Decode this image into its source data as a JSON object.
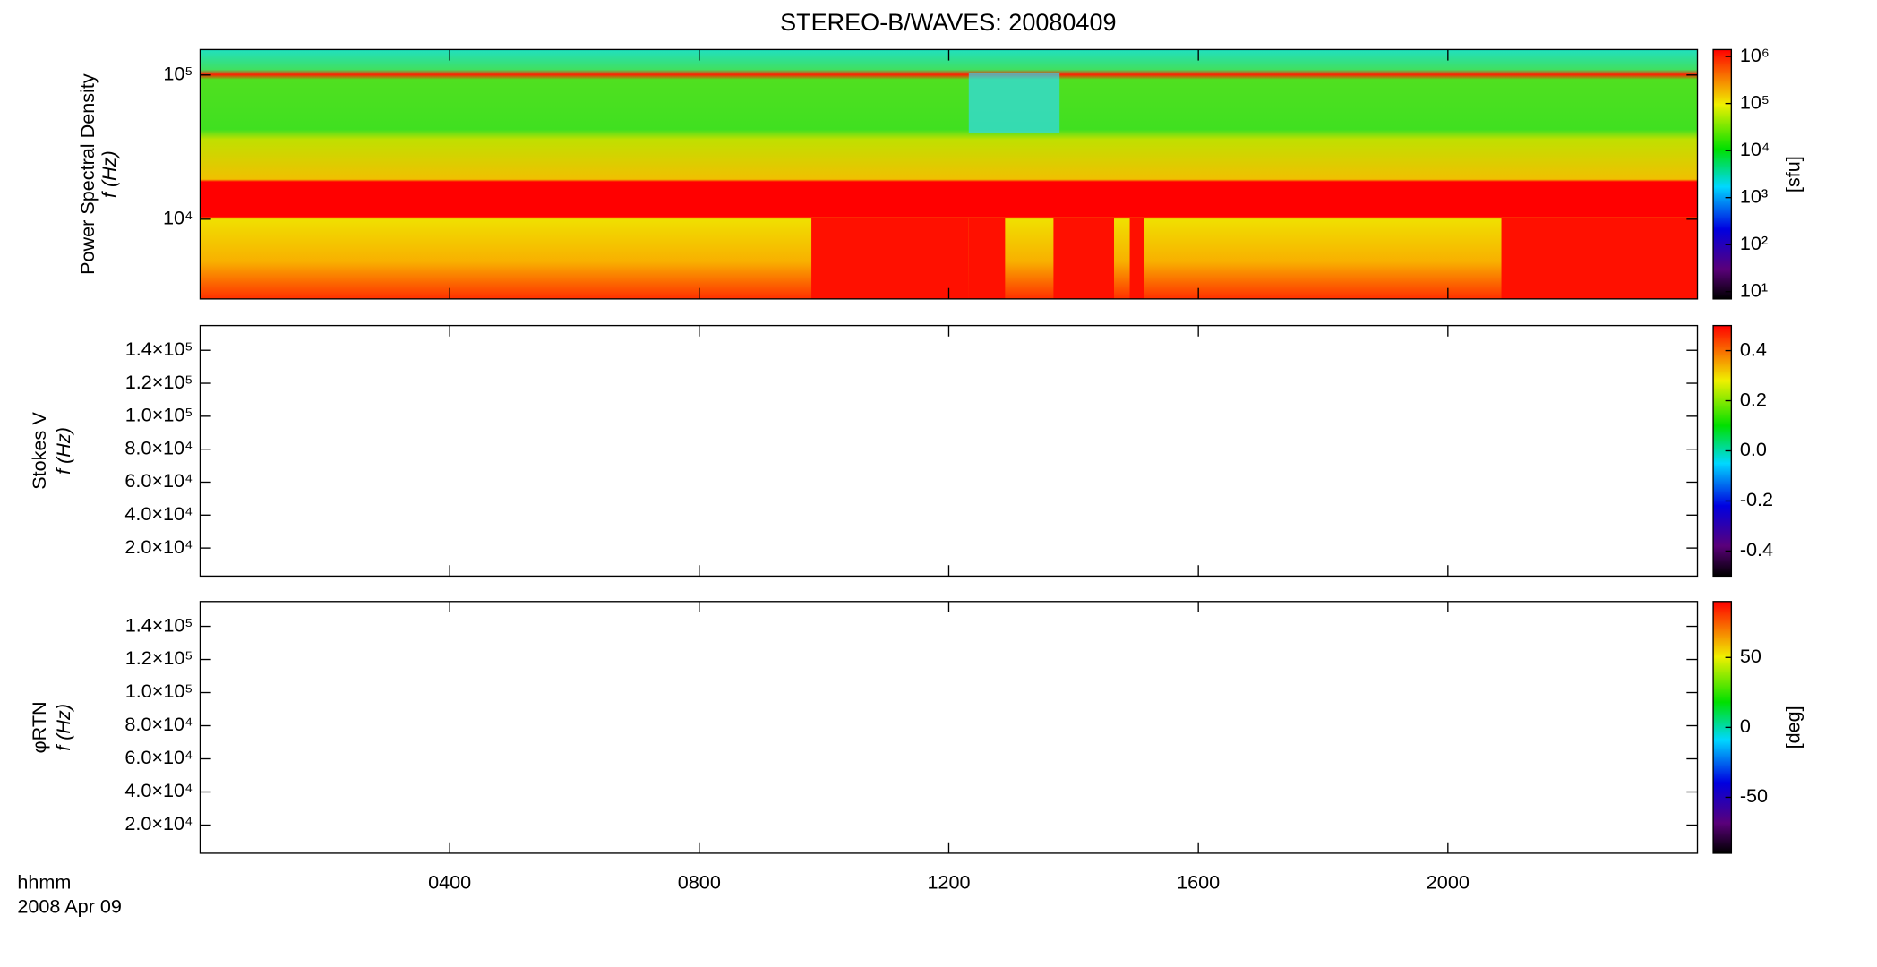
{
  "chart_data": [
    {
      "type": "heatmap",
      "title": "STEREO-B/WAVES: 20080409",
      "ylabel": [
        "Power Spectral Density",
        "f (Hz)"
      ],
      "ylog": true,
      "ylim": [
        2800,
        150000
      ],
      "yticks": [
        {
          "value": 10000,
          "label": "10⁴"
        },
        {
          "value": 100000,
          "label": "10⁵"
        }
      ],
      "zlog": true,
      "zlim": [
        7,
        1400000
      ],
      "zlabel": "[sfu]",
      "zticks": [
        {
          "value": 10,
          "label": "10¹"
        },
        {
          "value": 100,
          "label": "10²"
        },
        {
          "value": 1000,
          "label": "10³"
        },
        {
          "value": 10000,
          "label": "10⁴"
        },
        {
          "value": 100000,
          "label": "10⁵"
        },
        {
          "value": 1000000,
          "label": "10⁶"
        }
      ]
    },
    {
      "type": "heatmap",
      "ylabel": [
        "Stokes V",
        "f (Hz)"
      ],
      "ylog": false,
      "ylim": [
        3000,
        155000
      ],
      "yticks": [
        {
          "value": 20000,
          "label": "2.0×10⁴"
        },
        {
          "value": 40000,
          "label": "4.0×10⁴"
        },
        {
          "value": 60000,
          "label": "6.0×10⁴"
        },
        {
          "value": 80000,
          "label": "8.0×10⁴"
        },
        {
          "value": 100000,
          "label": "1.0×10⁵"
        },
        {
          "value": 120000,
          "label": "1.2×10⁵"
        },
        {
          "value": 140000,
          "label": "1.4×10⁵"
        }
      ],
      "zlog": false,
      "zlim": [
        -0.5,
        0.5
      ],
      "zticks": [
        -0.4,
        -0.2,
        {
          "value": 0,
          "label": "0.0"
        },
        0.2,
        0.4
      ]
    },
    {
      "type": "heatmap",
      "ylabel": [
        "φRTN",
        "f (Hz)"
      ],
      "ylog": false,
      "ylim": [
        3000,
        155000
      ],
      "yticks": [
        {
          "value": 20000,
          "label": "2.0×10⁴"
        },
        {
          "value": 40000,
          "label": "4.0×10⁴"
        },
        {
          "value": 60000,
          "label": "6.0×10⁴"
        },
        {
          "value": 80000,
          "label": "8.0×10⁴"
        },
        {
          "value": 100000,
          "label": "1.0×10⁵"
        },
        {
          "value": 120000,
          "label": "1.2×10⁵"
        },
        {
          "value": 140000,
          "label": "1.4×10⁵"
        }
      ],
      "zlog": false,
      "zlim": [
        -90,
        90
      ],
      "zlabel": "[deg]",
      "zticks": [
        -50,
        0,
        50
      ],
      "xlabel": [
        "hhmm",
        "2008 Apr 09"
      ],
      "xlim": [
        0,
        24
      ],
      "xticks": [
        {
          "value": 4,
          "label": "0400"
        },
        {
          "value": 8,
          "label": "0800"
        },
        {
          "value": 12,
          "label": "1200"
        },
        {
          "value": 16,
          "label": "1600"
        },
        {
          "value": 20,
          "label": "2000"
        }
      ]
    }
  ]
}
